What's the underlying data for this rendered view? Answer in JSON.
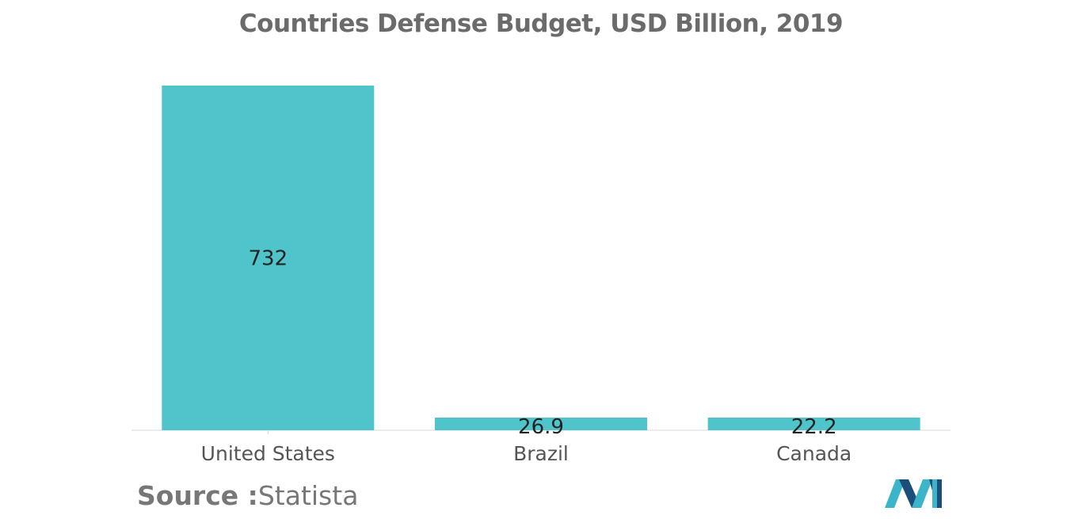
{
  "chart_data": {
    "type": "bar",
    "title": "Countries Defense Budget, USD Billion, 2019",
    "categories": [
      "United States",
      "Brazil",
      "Canada"
    ],
    "values": [
      732,
      26.9,
      22.2
    ],
    "data_labels": [
      "732",
      "26.9",
      "22.2"
    ],
    "ylim": [
      0,
      732
    ],
    "grid": false,
    "legend": "none",
    "colors": {
      "bar": "#50c4cb",
      "axis": "#d9d9d9",
      "label": "#222222",
      "tick": "#555555"
    }
  },
  "source": {
    "label": "Source :",
    "text": "Statista"
  },
  "logo": {
    "name": "mordor-intelligence-logo",
    "colors": [
      "#1b4e7a",
      "#3cb4c9"
    ]
  }
}
